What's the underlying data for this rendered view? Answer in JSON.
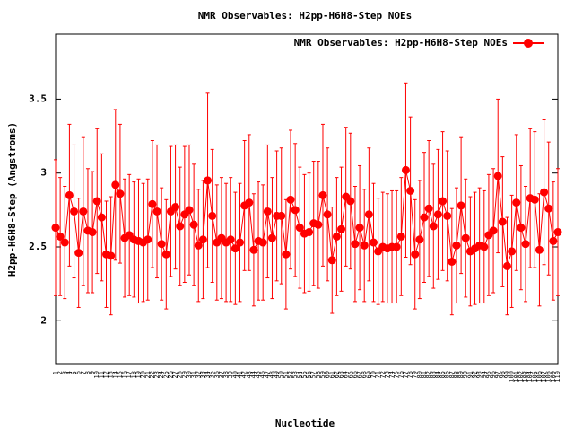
{
  "chart_data": {
    "type": "errorline",
    "title": "NMR Observables: H2pp-H6H8-Step NOEs",
    "xlabel": "Nucleotide",
    "ylabel": "H2pp-H6H8-Step (Angstroms)",
    "legend_position": "top-right",
    "ylim": [
      1.71,
      3.94
    ],
    "yticks": [
      2,
      2.5,
      3,
      3.5
    ],
    "categories": [
      "1",
      "2",
      "3",
      "4",
      "5",
      "6",
      "7",
      "8",
      "9",
      "10",
      "11",
      "12",
      "13",
      "14",
      "15",
      "16",
      "17",
      "18",
      "19",
      "20",
      "21",
      "22",
      "23",
      "24",
      "25",
      "26",
      "27",
      "28",
      "29",
      "30",
      "31",
      "32",
      "33",
      "34",
      "35",
      "36",
      "37",
      "38",
      "39",
      "40",
      "41",
      "42",
      "43",
      "44",
      "45",
      "46",
      "47",
      "48",
      "49",
      "50",
      "51",
      "52",
      "53",
      "54",
      "55",
      "56",
      "57",
      "58",
      "59",
      "60",
      "61",
      "62",
      "63",
      "64",
      "65",
      "66",
      "67",
      "68",
      "69",
      "70",
      "71",
      "72",
      "73",
      "74",
      "75",
      "76",
      "77",
      "78",
      "79",
      "80",
      "81",
      "82",
      "83",
      "84",
      "85",
      "86",
      "87",
      "88",
      "89",
      "90",
      "91",
      "92",
      "93",
      "94",
      "95",
      "96",
      "97",
      "98",
      "99",
      "100",
      "101",
      "102",
      "103",
      "104",
      "105",
      "106",
      "107",
      "108",
      "109",
      "110"
    ],
    "series": [
      {
        "name": "NMR Observables: H2pp-H6H8-Step NOEs",
        "color": "#ff0000",
        "values": [
          2.63,
          2.57,
          2.53,
          2.85,
          2.74,
          2.46,
          2.74,
          2.61,
          2.6,
          2.81,
          2.7,
          2.45,
          2.44,
          2.92,
          2.86,
          2.56,
          2.58,
          2.55,
          2.54,
          2.53,
          2.55,
          2.79,
          2.74,
          2.52,
          2.45,
          2.74,
          2.77,
          2.64,
          2.72,
          2.75,
          2.65,
          2.51,
          2.55,
          2.95,
          2.71,
          2.53,
          2.56,
          2.53,
          2.55,
          2.49,
          2.53,
          2.78,
          2.8,
          2.48,
          2.54,
          2.53,
          2.74,
          2.56,
          2.71,
          2.71,
          2.45,
          2.82,
          2.75,
          2.63,
          2.59,
          2.6,
          2.66,
          2.65,
          2.85,
          2.72,
          2.41,
          2.57,
          2.62,
          2.84,
          2.81,
          2.52,
          2.63,
          2.51,
          2.72,
          2.53,
          2.47,
          2.5,
          2.49,
          2.5,
          2.5,
          2.57,
          3.02,
          2.88,
          2.45,
          2.55,
          2.7,
          2.76,
          2.64,
          2.72,
          2.81,
          2.71,
          2.4,
          2.51,
          2.78,
          2.56,
          2.47,
          2.49,
          2.51,
          2.5,
          2.58,
          2.61,
          2.98,
          2.67,
          2.37,
          2.47,
          2.8,
          2.63,
          2.52,
          2.83,
          2.82,
          2.48,
          2.87,
          2.76,
          2.54,
          2.6
        ],
        "errors": [
          0.46,
          0.4,
          0.38,
          0.48,
          0.45,
          0.37,
          0.5,
          0.42,
          0.41,
          0.49,
          0.43,
          0.36,
          0.4,
          0.51,
          0.47,
          0.4,
          0.41,
          0.39,
          0.42,
          0.4,
          0.41,
          0.43,
          0.45,
          0.38,
          0.37,
          0.44,
          0.42,
          0.4,
          0.46,
          0.44,
          0.41,
          0.38,
          0.4,
          0.59,
          0.45,
          0.39,
          0.41,
          0.4,
          0.42,
          0.38,
          0.4,
          0.44,
          0.46,
          0.38,
          0.4,
          0.39,
          0.45,
          0.41,
          0.44,
          0.46,
          0.37,
          0.47,
          0.45,
          0.41,
          0.4,
          0.4,
          0.42,
          0.43,
          0.48,
          0.45,
          0.36,
          0.4,
          0.42,
          0.47,
          0.46,
          0.39,
          0.42,
          0.38,
          0.45,
          0.4,
          0.36,
          0.37,
          0.37,
          0.38,
          0.38,
          0.4,
          0.59,
          0.5,
          0.37,
          0.4,
          0.44,
          0.46,
          0.42,
          0.44,
          0.47,
          0.44,
          0.36,
          0.39,
          0.46,
          0.4,
          0.37,
          0.38,
          0.39,
          0.38,
          0.41,
          0.42,
          0.52,
          0.44,
          0.33,
          0.38,
          0.46,
          0.42,
          0.39,
          0.47,
          0.46,
          0.38,
          0.49,
          0.45,
          0.4,
          0.43
        ]
      }
    ]
  }
}
